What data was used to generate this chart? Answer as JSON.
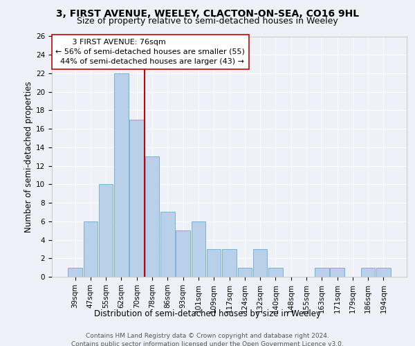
{
  "title1": "3, FIRST AVENUE, WEELEY, CLACTON-ON-SEA, CO16 9HL",
  "title2": "Size of property relative to semi-detached houses in Weeley",
  "xlabel": "Distribution of semi-detached houses by size in Weeley",
  "ylabel": "Number of semi-detached properties",
  "categories": [
    "39sqm",
    "47sqm",
    "55sqm",
    "62sqm",
    "70sqm",
    "78sqm",
    "86sqm",
    "93sqm",
    "101sqm",
    "109sqm",
    "117sqm",
    "124sqm",
    "132sqm",
    "140sqm",
    "148sqm",
    "155sqm",
    "163sqm",
    "171sqm",
    "179sqm",
    "186sqm",
    "194sqm"
  ],
  "values": [
    1,
    6,
    10,
    22,
    17,
    13,
    7,
    5,
    6,
    3,
    3,
    1,
    3,
    1,
    0,
    0,
    1,
    1,
    0,
    1,
    1
  ],
  "bar_color": "#b8d0ea",
  "bar_edge_color": "#6aabd2",
  "redline_index": 4,
  "highlight_color": "#cc0000",
  "property_label": "3 FIRST AVENUE: 76sqm",
  "pct_smaller": 56,
  "n_smaller": 55,
  "pct_larger": 44,
  "n_larger": 43,
  "ylim": [
    0,
    26
  ],
  "yticks": [
    0,
    2,
    4,
    6,
    8,
    10,
    12,
    14,
    16,
    18,
    20,
    22,
    24,
    26
  ],
  "annotation_box_color": "#ffffff",
  "annotation_box_edge": "#cc0000",
  "footer": "Contains HM Land Registry data © Crown copyright and database right 2024.\nContains public sector information licensed under the Open Government Licence v3.0.",
  "bg_color": "#eef2f8",
  "grid_color": "#ffffff",
  "title1_fontsize": 10,
  "title2_fontsize": 9,
  "tick_fontsize": 7.5,
  "ylabel_fontsize": 8.5,
  "xlabel_fontsize": 8.5,
  "annotation_fontsize": 8,
  "footer_fontsize": 6.5
}
